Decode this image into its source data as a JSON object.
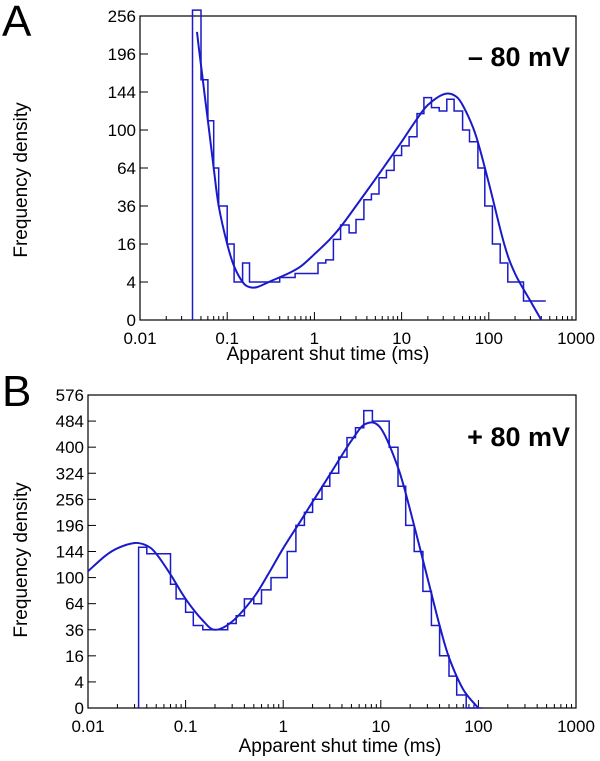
{
  "chart_data": [
    {
      "type": "line",
      "panel_label": "A",
      "annotation": "– 80 mV",
      "xlabel": "Apparent shut time (ms)",
      "ylabel": "Frequency density",
      "xscale": "log",
      "yscale": "sqrt",
      "xlim": [
        0.01,
        1000
      ],
      "ylim": [
        0,
        256
      ],
      "x_ticks": [
        0.01,
        0.1,
        1,
        10,
        100,
        1000
      ],
      "x_tick_labels": [
        "0.01",
        "0.1",
        "1",
        "10",
        "100",
        "1000"
      ],
      "y_ticks": [
        0,
        4,
        16,
        36,
        64,
        100,
        144,
        196,
        256
      ],
      "y_tick_labels": [
        "0",
        "4",
        "16",
        "36",
        "64",
        "100",
        "144",
        "196",
        "256"
      ],
      "grid": false,
      "series": [
        {
          "kind": "histogram",
          "color": "#1a1ac8",
          "edges": [
            0.04,
            0.05,
            0.06,
            0.07,
            0.08,
            0.1,
            0.12,
            0.15,
            0.18,
            0.22,
            0.27,
            0.33,
            0.4,
            0.5,
            0.6,
            0.75,
            0.9,
            1.1,
            1.35,
            1.65,
            2,
            2.5,
            3,
            3.7,
            4.5,
            5.5,
            6.7,
            8.2,
            10,
            12.2,
            15,
            18,
            22,
            27,
            33,
            40,
            50,
            60,
            75,
            90,
            110,
            135,
            165,
            200,
            250,
            300,
            370,
            450
          ],
          "values": [
            266,
            160,
            110,
            64,
            36,
            16,
            4,
            9,
            4,
            4,
            4,
            4,
            5,
            5,
            6,
            6,
            6,
            9,
            10,
            18,
            25,
            21,
            28,
            40,
            44,
            56,
            62,
            75,
            84,
            93,
            118,
            137,
            125,
            121,
            135,
            121,
            100,
            88,
            64,
            36,
            16,
            9,
            4,
            4,
            1,
            1,
            1
          ]
        },
        {
          "kind": "fit",
          "color": "#1a1ac8",
          "x": [
            0.045,
            0.05,
            0.06,
            0.07,
            0.08,
            0.1,
            0.12,
            0.15,
            0.18,
            0.22,
            0.3,
            0.5,
            0.7,
            1,
            1.5,
            2,
            3,
            5,
            7,
            10,
            15,
            20,
            30,
            40,
            50,
            70,
            100,
            150,
            200,
            300,
            400
          ],
          "y": [
            230,
            180,
            110,
            64,
            36,
            16,
            8,
            4,
            3,
            3,
            4,
            6,
            8,
            12,
            18,
            24,
            36,
            55,
            70,
            88,
            112,
            128,
            141,
            140,
            128,
            96,
            52,
            16,
            6,
            1,
            0
          ]
        }
      ]
    },
    {
      "type": "line",
      "panel_label": "B",
      "annotation": "+ 80 mV",
      "xlabel": "Apparent shut time (ms)",
      "ylabel": "Frequency density",
      "xscale": "log",
      "yscale": "sqrt",
      "xlim": [
        0.01,
        1000
      ],
      "ylim": [
        0,
        576
      ],
      "x_ticks": [
        0.01,
        0.1,
        1,
        10,
        100,
        1000
      ],
      "x_tick_labels": [
        "0.01",
        "0.1",
        "1",
        "10",
        "100",
        "1000"
      ],
      "y_ticks": [
        0,
        4,
        16,
        36,
        64,
        100,
        144,
        196,
        256,
        324,
        400,
        484,
        576
      ],
      "y_tick_labels": [
        "0",
        "4",
        "16",
        "36",
        "64",
        "100",
        "144",
        "196",
        "256",
        "324",
        "400",
        "484",
        "576"
      ],
      "grid": false,
      "series": [
        {
          "kind": "histogram",
          "color": "#1a1ac8",
          "edges": [
            0.033,
            0.04,
            0.05,
            0.07,
            0.08,
            0.1,
            0.12,
            0.15,
            0.18,
            0.22,
            0.27,
            0.33,
            0.4,
            0.5,
            0.6,
            0.75,
            0.9,
            1.1,
            1.35,
            1.65,
            2,
            2.5,
            3,
            3.7,
            4.5,
            5.5,
            6.7,
            8.2,
            10,
            12.2,
            15,
            18,
            22,
            27,
            33,
            40,
            50,
            60,
            75,
            90,
            110
          ],
          "values": [
            152,
            140,
            140,
            90,
            70,
            54,
            40,
            36,
            36,
            36,
            42,
            50,
            70,
            64,
            82,
            100,
            100,
            144,
            196,
            225,
            256,
            289,
            324,
            370,
            430,
            462,
            520,
            484,
            484,
            400,
            289,
            196,
            144,
            80,
            40,
            16,
            6,
            1,
            0,
            0
          ]
        },
        {
          "kind": "fit",
          "color": "#1a1ac8",
          "x": [
            0.01,
            0.015,
            0.02,
            0.03,
            0.04,
            0.05,
            0.07,
            0.1,
            0.15,
            0.2,
            0.3,
            0.5,
            0.7,
            1,
            1.5,
            2,
            3,
            5,
            7,
            10,
            15,
            20,
            30,
            40,
            50,
            70,
            100
          ],
          "y": [
            110,
            136,
            150,
            160,
            155,
            140,
            105,
            70,
            45,
            36,
            44,
            72,
            105,
            150,
            205,
            250,
            320,
            420,
            475,
            460,
            340,
            230,
            100,
            40,
            15,
            2,
            0
          ]
        }
      ]
    }
  ]
}
